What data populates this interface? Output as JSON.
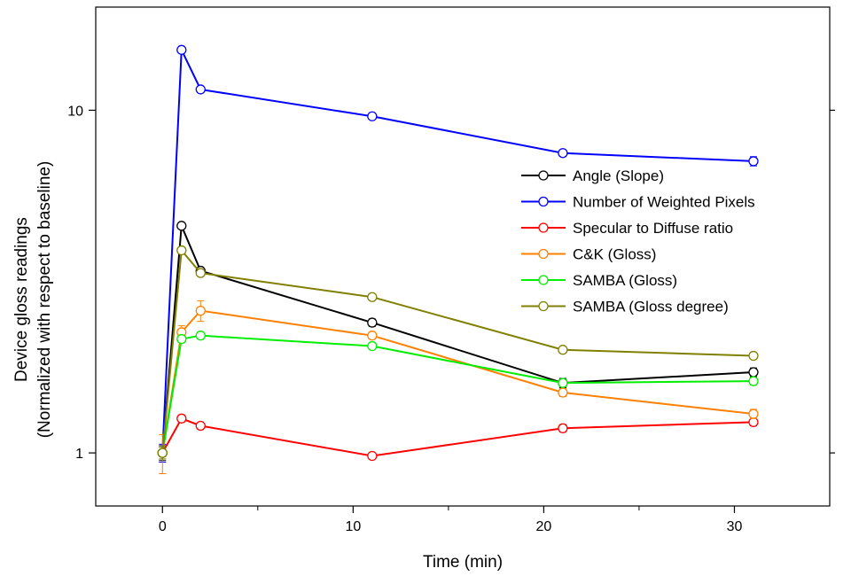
{
  "chart_data": {
    "type": "line",
    "title": "",
    "xlabel": "Time (min)",
    "ylabel": [
      "Device gloss readings",
      "(Normalized with respect to baseline)"
    ],
    "xlim": [
      -3.5,
      35
    ],
    "ylim": [
      0.7,
      20
    ],
    "yscale": "log",
    "x_ticks": [
      0,
      10,
      20,
      30
    ],
    "y_ticks": [
      1,
      10
    ],
    "grid": false,
    "legend_position": "right",
    "x": [
      0,
      1,
      2,
      11,
      21,
      31
    ],
    "series": [
      {
        "name": "Angle (Slope)",
        "color": "#000000",
        "values": [
          1.0,
          4.6,
          3.4,
          2.4,
          1.6,
          1.72
        ],
        "errors": [
          0.05,
          0.08,
          0.07,
          0.06,
          0.05,
          0.05
        ]
      },
      {
        "name": "Number of Weighted Pixels",
        "color": "#0000ff",
        "values": [
          1.0,
          15.0,
          11.5,
          9.6,
          7.5,
          7.1
        ],
        "errors": [
          0.06,
          0.25,
          0.2,
          0.18,
          0.16,
          0.22
        ]
      },
      {
        "name": "Specular to Diffuse ratio",
        "color": "#ff0000",
        "values": [
          1.0,
          1.26,
          1.2,
          0.98,
          1.18,
          1.23
        ],
        "errors": [
          0.04,
          0.03,
          0.025,
          0.02,
          0.03,
          0.03
        ]
      },
      {
        "name": "C&K (Gloss)",
        "color": "#ff8000",
        "values": [
          1.0,
          2.25,
          2.6,
          2.2,
          1.5,
          1.3
        ],
        "errors": [
          0.13,
          0.1,
          0.18,
          0.05,
          0.04,
          0.04
        ]
      },
      {
        "name": "SAMBA (Gloss)",
        "color": "#00ee00",
        "values": [
          1.0,
          2.15,
          2.2,
          2.05,
          1.6,
          1.62
        ],
        "errors": [
          0.04,
          0.05,
          0.05,
          0.04,
          0.04,
          0.04
        ]
      },
      {
        "name": "SAMBA (Gloss degree)",
        "color": "#808000",
        "values": [
          1.0,
          3.9,
          3.35,
          2.85,
          2.0,
          1.92
        ],
        "errors": [
          0.04,
          0.05,
          0.05,
          0.05,
          0.04,
          0.04
        ]
      }
    ]
  }
}
